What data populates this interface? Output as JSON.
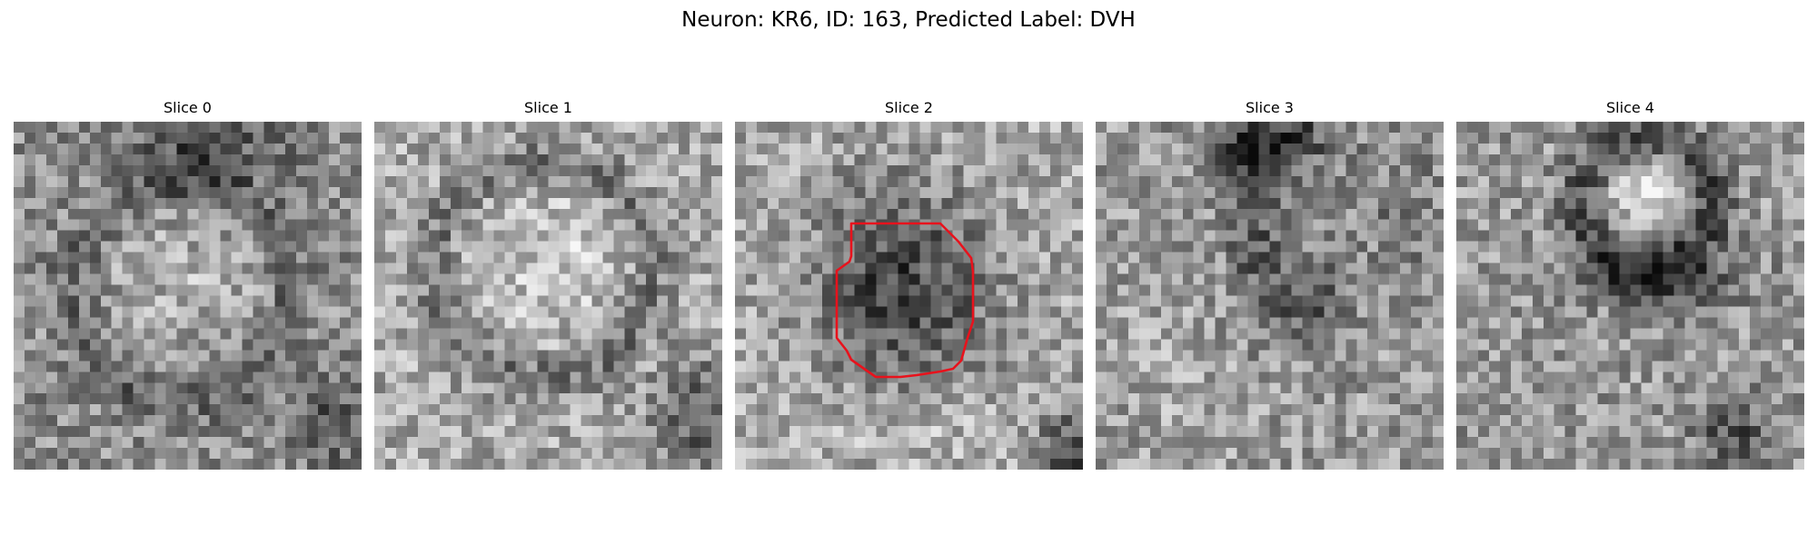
{
  "figure": {
    "title": "Neuron: KR6, ID: 163, Predicted Label: DVH"
  },
  "panels": [
    {
      "title": "Slice 0",
      "has_contour": false
    },
    {
      "title": "Slice 1",
      "has_contour": false
    },
    {
      "title": "Slice 2",
      "has_contour": true
    },
    {
      "title": "Slice 3",
      "has_contour": false
    },
    {
      "title": "Slice 4",
      "has_contour": false
    }
  ],
  "colormap": "grayscale",
  "contour_color": "#e8121c"
}
